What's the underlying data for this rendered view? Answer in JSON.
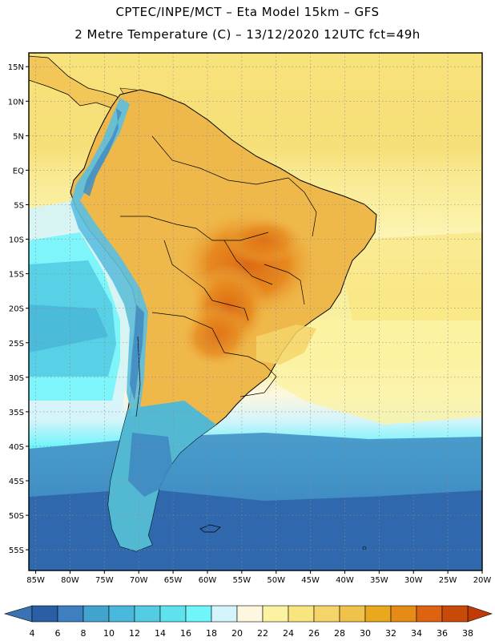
{
  "header": {
    "line1": "CPTEC/INPE/MCT –  Eta Model 15km – GFS",
    "line2": "2 Metre Temperature (C) – 13/12/2020 12UTC fct=49h"
  },
  "map": {
    "lat_labels": [
      "15N",
      "10N",
      "5N",
      "EQ",
      "5S",
      "10S",
      "15S",
      "20S",
      "25S",
      "30S",
      "35S",
      "40S",
      "45S",
      "50S",
      "55S"
    ],
    "lon_labels": [
      "85W",
      "80W",
      "75W",
      "70W",
      "65W",
      "60W",
      "55W",
      "50W",
      "45W",
      "40W",
      "35W",
      "30W",
      "25W",
      "20W"
    ],
    "lat_range": [
      -58,
      17
    ],
    "lon_range": [
      -86,
      -20
    ]
  },
  "colorbar": {
    "levels": [
      "4",
      "6",
      "8",
      "10",
      "12",
      "14",
      "16",
      "18",
      "20",
      "22",
      "24",
      "26",
      "28",
      "30",
      "32",
      "34",
      "36",
      "38"
    ],
    "colors": [
      "#2a5fa6",
      "#3d7fbf",
      "#43a3cf",
      "#4ab8da",
      "#54cde4",
      "#5fe2ee",
      "#6ff5fa",
      "#d4f4fb",
      "#fdf7df",
      "#fbf2a2",
      "#f9e57e",
      "#f5d56a",
      "#efc24c",
      "#e9a81e",
      "#e68a18",
      "#dd6310",
      "#c84a08"
    ],
    "low_color": "#3a72b3",
    "high_color": "#c23a05"
  },
  "palette": {
    "ocean_cold": "#2f66ad",
    "ocean_cool": "#3f89c2",
    "ocean_mid": "#55c8e4",
    "ocean_cyan": "#6ff5fa",
    "ocean_pale": "#d4f4fb",
    "ocean_warm": "#fdf0a0",
    "ocean_hot": "#f5d56a",
    "land_warm": "#efb84a",
    "land_hot": "#e78a1f",
    "andes": "#5bbfe0"
  }
}
